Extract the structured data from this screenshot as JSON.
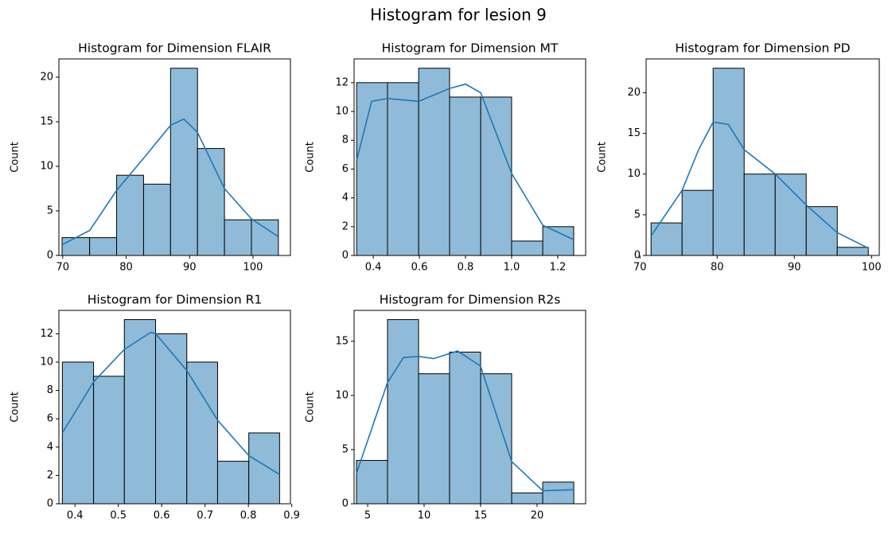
{
  "title": "Histogram for lesion 9",
  "chart_data": [
    {
      "type": "histogram",
      "title": "Histogram for Dimension FLAIR",
      "ylabel": "Count",
      "color": "#8fbbd9",
      "edgecolor": "#000000",
      "bins": [
        69.9,
        74.25,
        78.5,
        82.75,
        87.0,
        91.25,
        95.5,
        99.75,
        104.0
      ],
      "values": [
        2,
        2,
        9,
        8,
        21,
        12,
        4,
        4
      ],
      "line": {
        "color": "#1f77b4",
        "x": [
          69.9,
          74.25,
          78.5,
          82.75,
          87.0,
          89.1,
          91.25,
          95.5,
          99.75,
          104.0
        ],
        "values": [
          1.2,
          2.8,
          7.3,
          10.9,
          14.6,
          15.3,
          13.8,
          7.5,
          4.1,
          2.1
        ]
      },
      "xlim": [
        69.4,
        105.9
      ],
      "xticks": [
        70,
        80,
        90,
        100
      ],
      "ylim": [
        0,
        22.05
      ],
      "yticks": [
        0,
        5,
        10,
        15,
        20
      ]
    },
    {
      "type": "histogram",
      "title": "Histogram for Dimension MT",
      "ylabel": "Count",
      "color": "#8fbbd9",
      "edgecolor": "#000000",
      "bins": [
        0.328,
        0.462,
        0.597,
        0.731,
        0.866,
        1.0,
        1.135,
        1.269
      ],
      "values": [
        12,
        12,
        13,
        11,
        11,
        1,
        2
      ],
      "line": {
        "color": "#1f77b4",
        "x": [
          0.328,
          0.393,
          0.462,
          0.597,
          0.731,
          0.8,
          0.866,
          1.0,
          1.135,
          1.269
        ],
        "values": [
          6.6,
          10.7,
          10.9,
          10.7,
          11.6,
          11.9,
          11.3,
          5.7,
          2.1,
          1.1
        ]
      },
      "xlim": [
        0.317,
        1.321
      ],
      "xticks": [
        0.4,
        0.6,
        0.8,
        {
          "value": 1,
          "label": "1.0"
        },
        1.2
      ],
      "ylim": [
        0,
        13.65
      ],
      "yticks": [
        0,
        2,
        4,
        6,
        8,
        10,
        12
      ]
    },
    {
      "type": "histogram",
      "title": "Histogram for Dimension PD",
      "ylabel": "Count",
      "color": "#8fbbd9",
      "edgecolor": "#000000",
      "bins": [
        71.44,
        75.46,
        79.48,
        83.5,
        87.52,
        91.54,
        95.56,
        99.58
      ],
      "values": [
        4,
        8,
        23,
        10,
        10,
        6,
        1
      ],
      "line": {
        "color": "#1f77b4",
        "x": [
          71.44,
          75.46,
          77.6,
          79.48,
          81.45,
          83.5,
          87.52,
          91.54,
          95.56,
          99.58
        ],
        "values": [
          2.4,
          8.0,
          13.0,
          16.4,
          16.1,
          13.0,
          10.0,
          6.2,
          2.8,
          0.9
        ]
      },
      "xlim": [
        70.8,
        101.0
      ],
      "xticks": [
        70,
        80,
        90,
        100
      ],
      "ylim": [
        0,
        24.15
      ],
      "yticks": [
        0,
        5,
        10,
        15,
        20
      ]
    },
    {
      "type": "histogram",
      "title": "Histogram for Dimension R1",
      "ylabel": "Count",
      "color": "#8fbbd9",
      "edgecolor": "#000000",
      "bins": [
        0.371,
        0.443,
        0.514,
        0.586,
        0.658,
        0.729,
        0.801,
        0.872
      ],
      "values": [
        10,
        9,
        13,
        12,
        10,
        3,
        5
      ],
      "line": {
        "color": "#1f77b4",
        "x": [
          0.371,
          0.443,
          0.514,
          0.575,
          0.586,
          0.658,
          0.729,
          0.801,
          0.872
        ],
        "values": [
          5.0,
          8.6,
          10.9,
          12.1,
          12.0,
          9.4,
          5.9,
          3.4,
          2.07
        ]
      },
      "xlim": [
        0.363,
        0.897
      ],
      "xticks": [
        0.4,
        0.5,
        0.6,
        0.7,
        0.8,
        0.9
      ],
      "ylim": [
        0,
        13.65
      ],
      "yticks": [
        0,
        2,
        4,
        6,
        8,
        10,
        12
      ]
    },
    {
      "type": "histogram",
      "title": "Histogram for Dimension R2s",
      "ylabel": "Count",
      "color": "#8fbbd9",
      "edgecolor": "#000000",
      "bins": [
        4.01,
        6.76,
        9.51,
        12.25,
        15.0,
        17.75,
        20.5,
        23.25
      ],
      "values": [
        4,
        17,
        12,
        14,
        12,
        1,
        2
      ],
      "line": {
        "color": "#1f77b4",
        "x": [
          4.01,
          6.76,
          8.17,
          9.51,
          10.85,
          12.96,
          15.0,
          17.75,
          20.5,
          23.25
        ],
        "values": [
          2.8,
          11.2,
          13.5,
          13.6,
          13.4,
          14.1,
          12.7,
          3.9,
          1.2,
          1.3
        ]
      },
      "xlim": [
        3.8,
        24.3
      ],
      "xticks": [
        5,
        10,
        15,
        20
      ],
      "ylim": [
        0,
        17.85
      ],
      "yticks": [
        0,
        5,
        10,
        15
      ]
    }
  ]
}
